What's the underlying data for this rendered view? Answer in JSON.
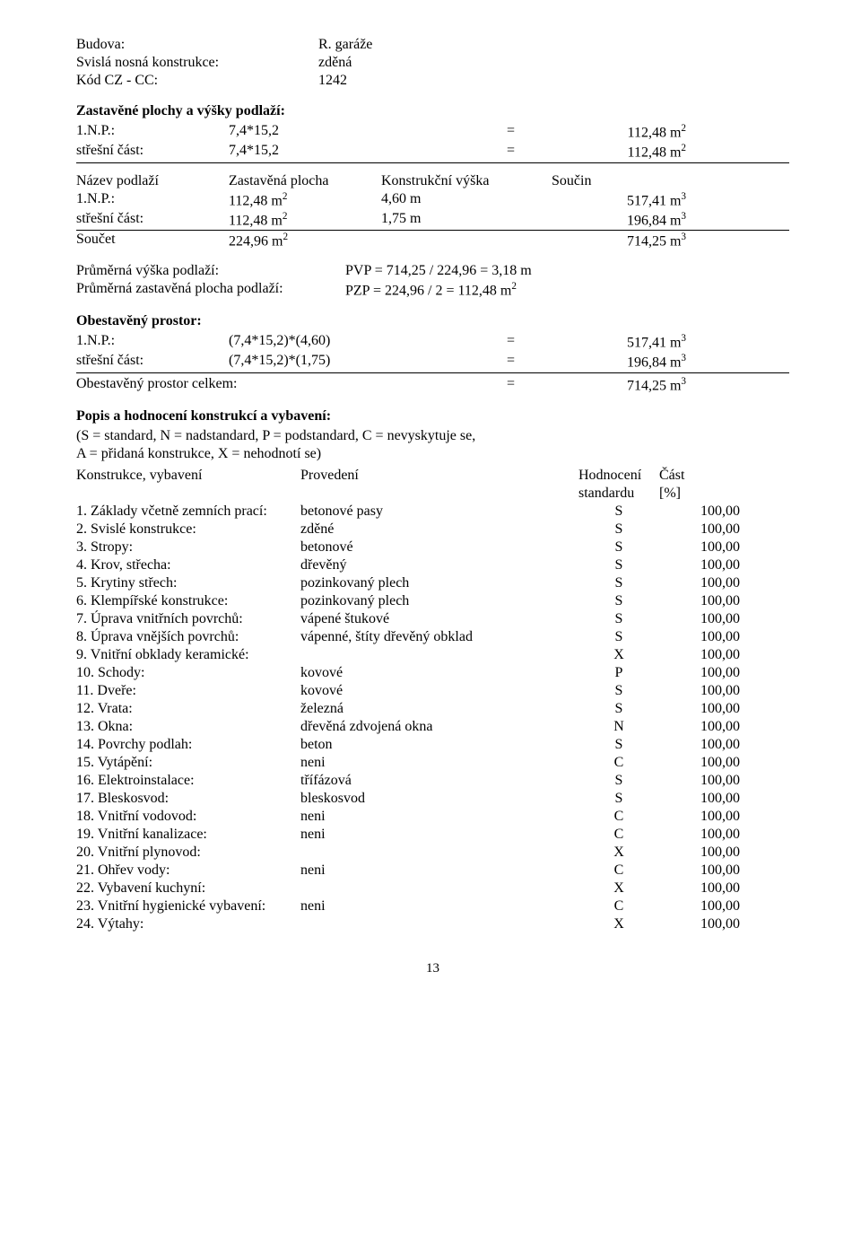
{
  "header": {
    "rows": [
      {
        "label": "Budova:",
        "value": "R. garáže"
      },
      {
        "label": "Svislá nosná konstrukce:",
        "value": "zděná"
      },
      {
        "label": "Kód CZ - CC:",
        "value": "1242"
      }
    ]
  },
  "zastavene_title": "Zastavěné plochy a výšky podlaží:",
  "zp_rows": [
    {
      "label": "1.N.P.:",
      "expr": "7,4*15,2",
      "eq": "=",
      "result": "112,48 m",
      "sup": "2"
    },
    {
      "label": "střešní část:",
      "expr": "7,4*15,2",
      "eq": "=",
      "result": "112,48 m",
      "sup": "2",
      "underline": true
    }
  ],
  "nazev_header": {
    "c1": "Název podlaží",
    "c2": "Zastavěná plocha",
    "c3": "Konstrukční výška",
    "c4": "Součin"
  },
  "nazev_rows": [
    {
      "c1": "1.N.P.:",
      "c2": "112,48 m",
      "c2sup": "2",
      "c3": "4,60 m",
      "c4": "517,41 m",
      "c4sup": "3"
    },
    {
      "c1": "střešní část:",
      "c2": "112,48 m",
      "c2sup": "2",
      "c3": "1,75 m",
      "c4": "196,84 m",
      "c4sup": "3",
      "underline": true
    },
    {
      "c1": "Součet",
      "c2": "224,96 m",
      "c2sup": "2",
      "c3": "",
      "c4": "714,25 m",
      "c4sup": "3"
    }
  ],
  "pvp": {
    "label": "Průměrná výška podlaží:",
    "value": "PVP = 714,25 / 224,96 = 3,18 m"
  },
  "pzp": {
    "label": "Průměrná zastavěná plocha podlaží:",
    "value": "PZP = 224,96 / 2 = 112,48 m",
    "sup": "2"
  },
  "obest_title": "Obestavěný prostor:",
  "obest_rows": [
    {
      "label": "1.N.P.:",
      "expr": "(7,4*15,2)*(4,60)",
      "eq": "=",
      "result": "517,41 m",
      "sup": "3"
    },
    {
      "label": "střešní část:",
      "expr": "(7,4*15,2)*(1,75)",
      "eq": "=",
      "result": "196,84 m",
      "sup": "3",
      "underline": true
    }
  ],
  "obest_total": {
    "label": "Obestavěný prostor celkem:",
    "eq": "=",
    "result": "714,25 m",
    "sup": "3"
  },
  "popis_title": "Popis a hodnocení konstrukcí a vybavení:",
  "popis_note1": "(S = standard, N = nadstandard, P = podstandard, C = nevyskytuje se,",
  "popis_note2": "A = přidaná konstrukce, X = nehodnotí se)",
  "table_header": {
    "c1": "Konstrukce, vybavení",
    "c2": "Provedení",
    "c3a": "Hodnocení",
    "c3b": "standardu",
    "c4a": "Část",
    "c4b": "[%]"
  },
  "table_rows": [
    {
      "n": " 1.",
      "name": "Základy včetně zemních prací:",
      "prov": "betonové pasy",
      "hod": "S",
      "cast": "100,00"
    },
    {
      "n": " 2.",
      "name": "Svislé konstrukce:",
      "prov": "zděné",
      "hod": "S",
      "cast": "100,00"
    },
    {
      "n": " 3.",
      "name": "Stropy:",
      "prov": "betonové",
      "hod": "S",
      "cast": "100,00"
    },
    {
      "n": " 4.",
      "name": "Krov, střecha:",
      "prov": "dřevěný",
      "hod": "S",
      "cast": "100,00"
    },
    {
      "n": " 5.",
      "name": "Krytiny střech:",
      "prov": "pozinkovaný plech",
      "hod": "S",
      "cast": "100,00"
    },
    {
      "n": " 6.",
      "name": "Klempířské konstrukce:",
      "prov": "pozinkovaný plech",
      "hod": "S",
      "cast": "100,00"
    },
    {
      "n": " 7.",
      "name": "Úprava vnitřních povrchů:",
      "prov": "vápené štukové",
      "hod": "S",
      "cast": "100,00"
    },
    {
      "n": " 8.",
      "name": "Úprava vnějších povrchů:",
      "prov": "vápenné, štíty dřevěný obklad",
      "hod": "S",
      "cast": "100,00"
    },
    {
      "n": " 9.",
      "name": "Vnitřní obklady keramické:",
      "prov": "",
      "hod": "X",
      "cast": "100,00"
    },
    {
      "n": "10.",
      "name": "Schody:",
      "prov": "kovové",
      "hod": "P",
      "cast": "100,00"
    },
    {
      "n": "11.",
      "name": "Dveře:",
      "prov": "kovové",
      "hod": "S",
      "cast": "100,00"
    },
    {
      "n": "12.",
      "name": "Vrata:",
      "prov": "železná",
      "hod": "S",
      "cast": "100,00"
    },
    {
      "n": "13.",
      "name": "Okna:",
      "prov": "dřevěná zdvojená okna",
      "hod": "N",
      "cast": "100,00"
    },
    {
      "n": "14.",
      "name": "Povrchy podlah:",
      "prov": "beton",
      "hod": "S",
      "cast": "100,00"
    },
    {
      "n": "15.",
      "name": "Vytápění:",
      "prov": "neni",
      "hod": "C",
      "cast": "100,00"
    },
    {
      "n": "16.",
      "name": "Elektroinstalace:",
      "prov": "třífázová",
      "hod": "S",
      "cast": "100,00"
    },
    {
      "n": "17.",
      "name": "Bleskosvod:",
      "prov": "bleskosvod",
      "hod": "S",
      "cast": "100,00"
    },
    {
      "n": "18.",
      "name": "Vnitřní vodovod:",
      "prov": "neni",
      "hod": "C",
      "cast": "100,00"
    },
    {
      "n": "19.",
      "name": "Vnitřní kanalizace:",
      "prov": "neni",
      "hod": "C",
      "cast": "100,00"
    },
    {
      "n": "20.",
      "name": "Vnitřní plynovod:",
      "prov": "",
      "hod": "X",
      "cast": "100,00"
    },
    {
      "n": "21.",
      "name": "Ohřev vody:",
      "prov": "neni",
      "hod": "C",
      "cast": "100,00"
    },
    {
      "n": "22.",
      "name": "Vybavení kuchyní:",
      "prov": "",
      "hod": "X",
      "cast": "100,00"
    },
    {
      "n": "23.",
      "name": "Vnitřní hygienické vybavení:",
      "prov": "neni",
      "hod": "C",
      "cast": "100,00"
    },
    {
      "n": "24.",
      "name": "Výtahy:",
      "prov": "",
      "hod": "X",
      "cast": "100,00"
    }
  ],
  "page_number": "13"
}
